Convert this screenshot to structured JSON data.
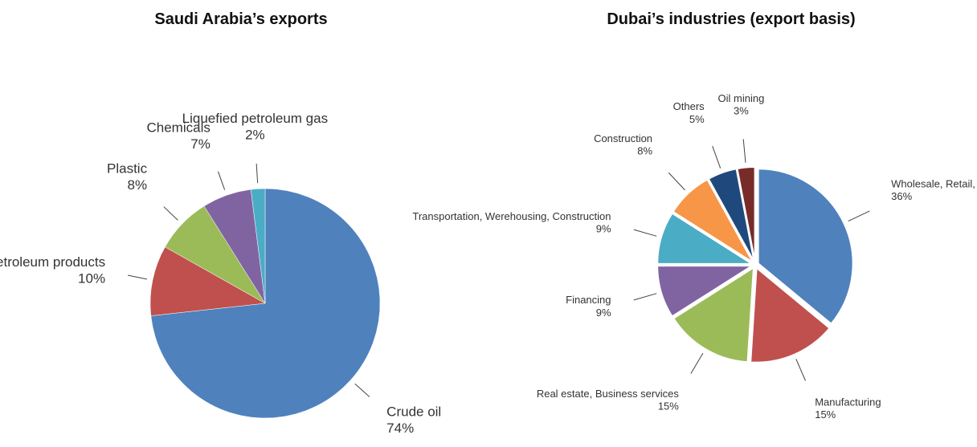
{
  "chart_data": [
    {
      "type": "pie",
      "title": "Saudi Arabia’s exports",
      "categories": [
        "Crude oil",
        "Petroleum products",
        "Plastic",
        "Chemicals",
        "Liquefied petroleum gas"
      ],
      "values": [
        74,
        10,
        8,
        7,
        2
      ],
      "value_labels": [
        "74%",
        "10%",
        "8%",
        "7%",
        "2%"
      ],
      "colors": [
        "#4f81bd",
        "#c0504d",
        "#9bbb59",
        "#8064a2",
        "#4bacc6"
      ]
    },
    {
      "type": "pie",
      "title": "Dubai’s industries (export basis)",
      "categories": [
        "Wholesale, Retail, Repair",
        "Manufacturing",
        "Real estate, Business services",
        "Financing",
        "Transportation, Werehousing, Construction",
        "Construction",
        "Others",
        "Oil mining"
      ],
      "values": [
        36,
        15,
        15,
        9,
        9,
        8,
        5,
        3
      ],
      "value_labels": [
        "36%",
        "15%",
        "15%",
        "9%",
        "9%",
        "8%",
        "5%",
        "3%"
      ],
      "colors": [
        "#4f81bd",
        "#c0504d",
        "#9bbb59",
        "#8064a2",
        "#4bacc6",
        "#f79646",
        "#1f497d",
        "#772c2a"
      ]
    }
  ]
}
